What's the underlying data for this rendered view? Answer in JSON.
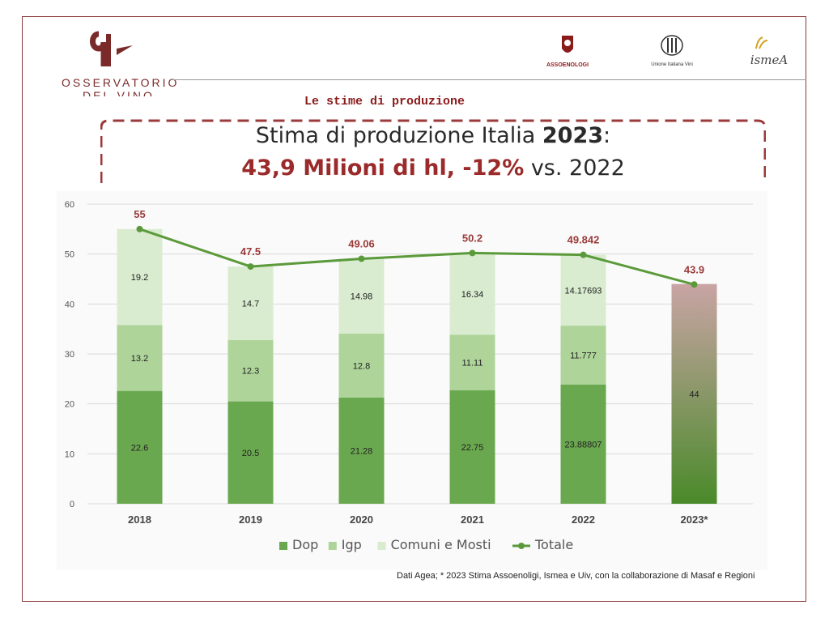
{
  "header": {
    "logo_line1": "OSSERVATORIO",
    "logo_line2": "DEL VINO",
    "partners": [
      "ASSOENOLOGI",
      "Unione Italiana Vini",
      "ismeA"
    ],
    "subtitle": "Le stime di produzione"
  },
  "banner": {
    "line1_prefix": "Stima di produzione Italia ",
    "line1_year": "2023",
    "line1_suffix": ":",
    "line2_main": "43,9 Milioni di hl, -12%",
    "line2_suffix": " vs. 2022"
  },
  "colors": {
    "dop": "#6aa84f",
    "igp": "#aed49a",
    "comuni": "#d9ecd0",
    "totale": "#5b9a3a",
    "estimate_top": "#c9a4a4",
    "estimate_bottom": "#4a8a2a",
    "total_label": "#9b3a3a",
    "frame": "#8b3a3a"
  },
  "chart_data": {
    "type": "bar",
    "stacked": true,
    "categories": [
      "2018",
      "2019",
      "2020",
      "2021",
      "2022",
      "2023*"
    ],
    "series": [
      {
        "name": "Dop",
        "values": [
          22.6,
          20.5,
          21.28,
          22.75,
          23.88807,
          null
        ],
        "labels": [
          "22.6",
          "20.5",
          "21.28",
          "22.75",
          "23.88807",
          ""
        ]
      },
      {
        "name": "Igp",
        "values": [
          13.2,
          12.3,
          12.8,
          11.11,
          11.777,
          null
        ],
        "labels": [
          "13.2",
          "12.3",
          "12.8",
          "11.11",
          "11.777",
          ""
        ]
      },
      {
        "name": "Comuni e Mosti",
        "values": [
          19.2,
          14.7,
          14.98,
          16.34,
          14.17693,
          null
        ],
        "labels": [
          "19.2",
          "14.7",
          "14.98",
          "16.34",
          "14.17693",
          ""
        ]
      }
    ],
    "estimate": {
      "category": "2023*",
      "value": 44,
      "label": "44"
    },
    "line": {
      "name": "Totale",
      "values": [
        55,
        47.5,
        49.06,
        50.2,
        49.842,
        43.9
      ],
      "labels": [
        "55",
        "47.5",
        "49.06",
        "50.2",
        "49.842",
        "43.9"
      ]
    },
    "yticks": [
      "0",
      "10",
      "20",
      "30",
      "40",
      "50",
      "60"
    ],
    "ylim": [
      0,
      60
    ],
    "grid": true,
    "legend_position": "bottom"
  },
  "source": "Dati Agea; * 2023 Stima Assoenoligi, Ismea e Uiv, con la collaborazione di Masaf e Regioni"
}
